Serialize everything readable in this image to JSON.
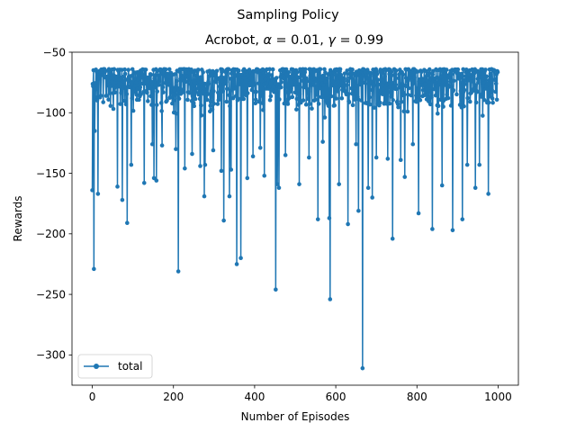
{
  "chart_data": {
    "type": "line",
    "suptitle": "Sampling Policy",
    "title_prefix": "Acrobot, ",
    "alpha_symbol": "α",
    "alpha_text": " = 0.01, ",
    "gamma_symbol": "γ",
    "gamma_text": " = 0.99",
    "xlabel": "Number of Episodes",
    "ylabel": "Rewards",
    "xlim": [
      -50,
      1050
    ],
    "ylim": [
      -325,
      -50
    ],
    "xticks": [
      0,
      200,
      400,
      600,
      800,
      1000
    ],
    "yticks": [
      -50,
      -100,
      -150,
      -200,
      -250,
      -300
    ],
    "xtick_labels": [
      "0",
      "200",
      "400",
      "600",
      "800",
      "1000"
    ],
    "ytick_labels": [
      "−50",
      "−100",
      "−150",
      "−200",
      "−250",
      "−300"
    ],
    "grid": false,
    "legend_position": "lower-left",
    "series": [
      {
        "name": "total",
        "color": "#1f77b4",
        "marker": "circle",
        "n_points": 1000,
        "baseline_range": [
          -100,
          -64
        ],
        "outliers": [
          [
            0,
            -164
          ],
          [
            4,
            -229
          ],
          [
            6,
            -115
          ],
          [
            14,
            -167
          ],
          [
            62,
            -161
          ],
          [
            74,
            -172
          ],
          [
            86,
            -191
          ],
          [
            96,
            -143
          ],
          [
            128,
            -158
          ],
          [
            148,
            -126
          ],
          [
            152,
            -154
          ],
          [
            158,
            -156
          ],
          [
            172,
            -127
          ],
          [
            206,
            -130
          ],
          [
            212,
            -231
          ],
          [
            228,
            -146
          ],
          [
            246,
            -134
          ],
          [
            266,
            -144
          ],
          [
            276,
            -169
          ],
          [
            278,
            -143
          ],
          [
            298,
            -131
          ],
          [
            318,
            -148
          ],
          [
            324,
            -189
          ],
          [
            338,
            -169
          ],
          [
            342,
            -147
          ],
          [
            356,
            -225
          ],
          [
            366,
            -220
          ],
          [
            382,
            -154
          ],
          [
            396,
            -136
          ],
          [
            414,
            -129
          ],
          [
            424,
            -152
          ],
          [
            452,
            -246
          ],
          [
            456,
            -159
          ],
          [
            460,
            -162
          ],
          [
            476,
            -135
          ],
          [
            510,
            -159
          ],
          [
            534,
            -137
          ],
          [
            556,
            -188
          ],
          [
            568,
            -124
          ],
          [
            584,
            -187
          ],
          [
            586,
            -254
          ],
          [
            608,
            -159
          ],
          [
            630,
            -192
          ],
          [
            650,
            -126
          ],
          [
            656,
            -181
          ],
          [
            666,
            -311
          ],
          [
            680,
            -162
          ],
          [
            690,
            -170
          ],
          [
            700,
            -137
          ],
          [
            728,
            -138
          ],
          [
            740,
            -204
          ],
          [
            760,
            -139
          ],
          [
            770,
            -153
          ],
          [
            790,
            -126
          ],
          [
            804,
            -183
          ],
          [
            838,
            -196
          ],
          [
            862,
            -160
          ],
          [
            888,
            -197
          ],
          [
            912,
            -188
          ],
          [
            924,
            -143
          ],
          [
            944,
            -162
          ],
          [
            954,
            -143
          ],
          [
            976,
            -167
          ]
        ]
      }
    ]
  }
}
